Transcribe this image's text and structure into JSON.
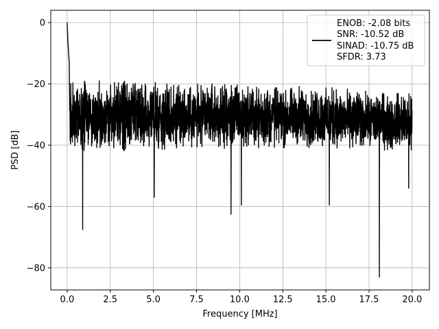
{
  "chart_data": {
    "type": "line",
    "xlabel": "Frequency [MHz]",
    "ylabel": "PSD [dB]",
    "xlim": [
      -0.95,
      21.0
    ],
    "ylim": [
      -87.2,
      4.0
    ],
    "xticks": [
      "0.0",
      "2.5",
      "5.0",
      "7.5",
      "10.0",
      "12.5",
      "15.0",
      "17.5",
      "20.0"
    ],
    "yticks": [
      "0",
      "−20",
      "−40",
      "−60",
      "−80"
    ],
    "grid": true,
    "legend_position": "top-right",
    "line_color": "#000000",
    "series": [
      {
        "name": "ENOB: -2.08 bits\nSNR: -10.52 dB\nSINAD: -10.75 dB\nSFDR: 3.73",
        "legend_lines": [
          "ENOB: -2.08 bits",
          "SNR: -10.52 dB",
          "SINAD: -10.75 dB",
          "SFDR: 3.73"
        ],
        "x_range": [
          0.0,
          20.0
        ],
        "noise_envelope": {
          "upper_db": [
            [
              0.1,
              -18
            ],
            [
              2.5,
              -19
            ],
            [
              10.0,
              -20
            ],
            [
              15.0,
              -21
            ],
            [
              20.0,
              -23
            ]
          ],
          "lower_db": [
            [
              0.1,
              -43
            ],
            [
              2.5,
              -42
            ],
            [
              10.0,
              -41
            ],
            [
              15.0,
              -41
            ],
            [
              20.0,
              -42
            ]
          ]
        },
        "peaks": [
          {
            "x": 0.0,
            "y": 0.0
          },
          {
            "x": 0.05,
            "y": -7.0
          },
          {
            "x": 0.12,
            "y": -13.0
          }
        ],
        "dips": [
          {
            "x": 0.9,
            "y": -67.5
          },
          {
            "x": 5.05,
            "y": -57.0
          },
          {
            "x": 9.5,
            "y": -62.5
          },
          {
            "x": 10.1,
            "y": -59.5
          },
          {
            "x": 15.2,
            "y": -59.5
          },
          {
            "x": 18.1,
            "y": -83.0
          },
          {
            "x": 19.8,
            "y": -54.0
          }
        ]
      }
    ]
  }
}
